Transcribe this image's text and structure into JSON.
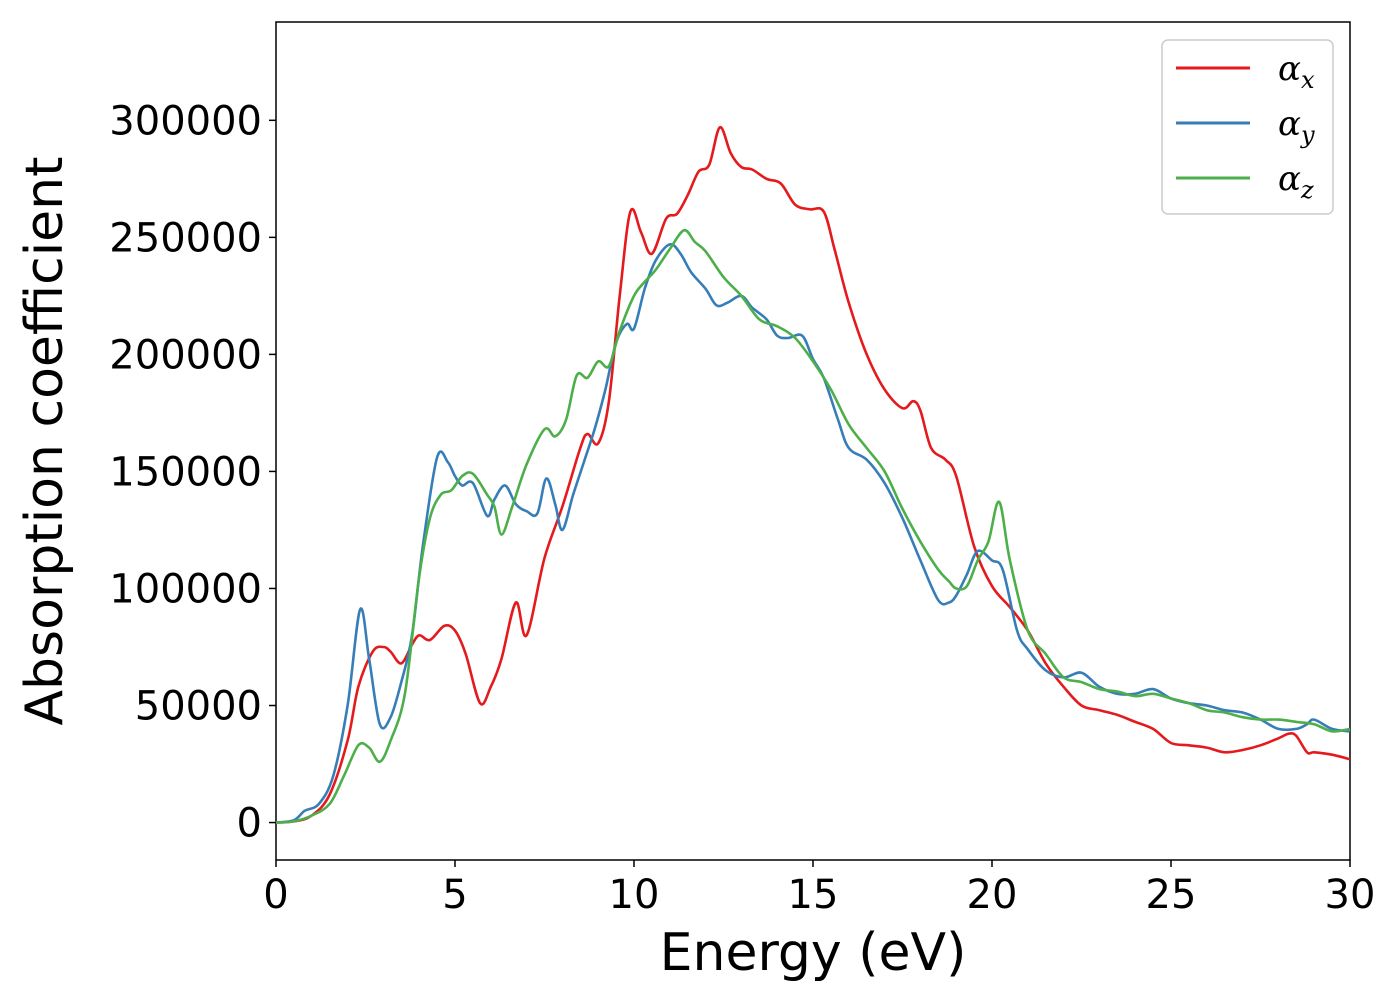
{
  "chart_data": {
    "type": "line",
    "title": "",
    "xlabel": "Energy (eV)",
    "ylabel": "Absorption coefficient",
    "xlim": [
      0,
      30
    ],
    "ylim": [
      -16000,
      342000
    ],
    "grid": false,
    "legend_position": "top-right",
    "xticks": [
      0,
      5,
      10,
      15,
      20,
      25,
      30
    ],
    "xtick_labels": [
      "0",
      "5",
      "10",
      "15",
      "20",
      "25",
      "30"
    ],
    "yticks": [
      0,
      50000,
      100000,
      150000,
      200000,
      250000,
      300000
    ],
    "ytick_labels": [
      "0",
      "50000",
      "100000",
      "150000",
      "200000",
      "250000",
      "300000"
    ],
    "series": [
      {
        "name": "αx",
        "symbol": "α",
        "subscript": "x",
        "color": "#e41a1c",
        "x": [
          0,
          0.5,
          1.0,
          1.5,
          2.0,
          2.3,
          2.7,
          3.0,
          3.2,
          3.5,
          3.8,
          4.0,
          4.3,
          4.7,
          5.0,
          5.3,
          5.7,
          6.0,
          6.3,
          6.7,
          7.0,
          7.5,
          8.0,
          8.5,
          8.7,
          9.0,
          9.3,
          9.6,
          9.9,
          10.2,
          10.5,
          10.9,
          11.2,
          11.5,
          11.8,
          12.1,
          12.4,
          12.7,
          13.0,
          13.3,
          13.7,
          14.1,
          14.5,
          14.9,
          15.3,
          15.6,
          16.0,
          16.5,
          17.0,
          17.5,
          17.8,
          18.0,
          18.3,
          18.7,
          19.0,
          19.5,
          20.0,
          20.5,
          21.0,
          21.5,
          22.0,
          22.5,
          23.0,
          23.5,
          24.0,
          24.5,
          25.0,
          25.5,
          26.0,
          26.5,
          27.0,
          27.5,
          28.0,
          28.3,
          28.5,
          28.8,
          29.0,
          29.5,
          30.0
        ],
        "y": [
          0,
          500,
          3000,
          12000,
          35000,
          58000,
          73000,
          75000,
          73000,
          68000,
          76000,
          80000,
          78000,
          84000,
          82000,
          72000,
          51000,
          58000,
          70000,
          94000,
          80000,
          113000,
          135000,
          160000,
          166000,
          162000,
          180000,
          225000,
          261000,
          252000,
          243000,
          258000,
          260000,
          268000,
          278000,
          281000,
          297000,
          286000,
          280000,
          279000,
          275000,
          273000,
          264000,
          262000,
          261000,
          245000,
          222000,
          200000,
          185000,
          177000,
          180000,
          176000,
          160000,
          155000,
          148000,
          118000,
          101000,
          92000,
          82000,
          68000,
          58000,
          50000,
          48000,
          46000,
          43000,
          40000,
          34000,
          33000,
          32000,
          30000,
          31000,
          33000,
          36000,
          38000,
          37000,
          30000,
          30000,
          29000,
          27000
        ]
      },
      {
        "name": "αy",
        "symbol": "α",
        "subscript": "y",
        "color": "#377eb8",
        "x": [
          0,
          0.5,
          0.8,
          1.2,
          1.6,
          2.0,
          2.35,
          2.6,
          2.9,
          3.2,
          3.5,
          3.8,
          4.1,
          4.5,
          4.8,
          5.0,
          5.2,
          5.5,
          5.9,
          6.1,
          6.4,
          6.7,
          7.0,
          7.3,
          7.55,
          7.8,
          8.0,
          8.3,
          8.6,
          8.9,
          9.2,
          9.5,
          9.8,
          10.0,
          10.3,
          10.6,
          11.0,
          11.3,
          11.6,
          12.0,
          12.3,
          12.6,
          13.0,
          13.3,
          13.7,
          14.0,
          14.3,
          14.7,
          15.0,
          15.3,
          15.7,
          16.0,
          16.5,
          17.0,
          17.5,
          18.0,
          18.5,
          18.8,
          19.0,
          19.3,
          19.6,
          20.0,
          20.3,
          20.7,
          21.0,
          21.5,
          22.0,
          22.5,
          23.0,
          23.5,
          24.0,
          24.5,
          25.0,
          25.5,
          26.0,
          26.5,
          27.0,
          27.5,
          28.0,
          28.5,
          28.8,
          29.0,
          29.5,
          30.0
        ],
        "y": [
          0,
          1000,
          5000,
          8000,
          20000,
          50000,
          91000,
          70000,
          42000,
          45000,
          60000,
          80000,
          118000,
          156000,
          154000,
          148000,
          144000,
          145000,
          131000,
          138000,
          144000,
          136000,
          133000,
          132000,
          147000,
          136000,
          125000,
          140000,
          154000,
          168000,
          185000,
          205000,
          213000,
          211000,
          228000,
          240000,
          247000,
          243000,
          235000,
          228000,
          221000,
          222000,
          225000,
          220000,
          215000,
          208000,
          207000,
          208000,
          198000,
          190000,
          172000,
          160000,
          155000,
          145000,
          130000,
          112000,
          95000,
          94000,
          97000,
          106000,
          116000,
          112000,
          108000,
          82000,
          74000,
          65000,
          62000,
          64000,
          58000,
          55000,
          55000,
          57000,
          53000,
          51000,
          50000,
          48000,
          47000,
          44000,
          40000,
          40000,
          42000,
          44000,
          40000,
          39000
        ]
      },
      {
        "name": "αz",
        "symbol": "α",
        "subscript": "z",
        "color": "#4daf4a",
        "x": [
          0,
          0.5,
          1.0,
          1.5,
          1.9,
          2.3,
          2.6,
          2.9,
          3.2,
          3.6,
          4.0,
          4.3,
          4.6,
          4.9,
          5.2,
          5.5,
          5.9,
          6.1,
          6.3,
          6.6,
          7.0,
          7.5,
          7.8,
          8.1,
          8.4,
          8.7,
          9.0,
          9.3,
          9.6,
          10.0,
          10.3,
          10.6,
          11.0,
          11.4,
          11.7,
          12.0,
          12.5,
          13.0,
          13.5,
          14.0,
          14.5,
          15.0,
          15.5,
          16.0,
          16.5,
          17.0,
          17.5,
          18.0,
          18.5,
          18.8,
          19.0,
          19.3,
          19.6,
          19.9,
          20.2,
          20.5,
          21.0,
          21.5,
          22.0,
          22.5,
          23.0,
          23.5,
          24.0,
          24.5,
          25.0,
          25.5,
          26.0,
          26.5,
          27.0,
          27.5,
          28.0,
          28.5,
          29.0,
          29.5,
          30.0
        ],
        "y": [
          0,
          500,
          3000,
          8000,
          20000,
          33000,
          32000,
          26000,
          35000,
          55000,
          105000,
          130000,
          140000,
          142000,
          148000,
          149000,
          140000,
          135000,
          123000,
          135000,
          153000,
          168000,
          165000,
          172000,
          191000,
          190000,
          197000,
          195000,
          210000,
          225000,
          231000,
          236000,
          245000,
          253000,
          248000,
          244000,
          233000,
          225000,
          215000,
          212000,
          207000,
          197000,
          185000,
          170000,
          160000,
          150000,
          134000,
          120000,
          108000,
          103000,
          100000,
          101000,
          112000,
          120000,
          137000,
          112000,
          82000,
          72000,
          62000,
          60000,
          57000,
          56000,
          54000,
          55000,
          53000,
          51000,
          48000,
          47000,
          45000,
          44000,
          44000,
          43000,
          42000,
          39000,
          40000
        ]
      }
    ]
  }
}
